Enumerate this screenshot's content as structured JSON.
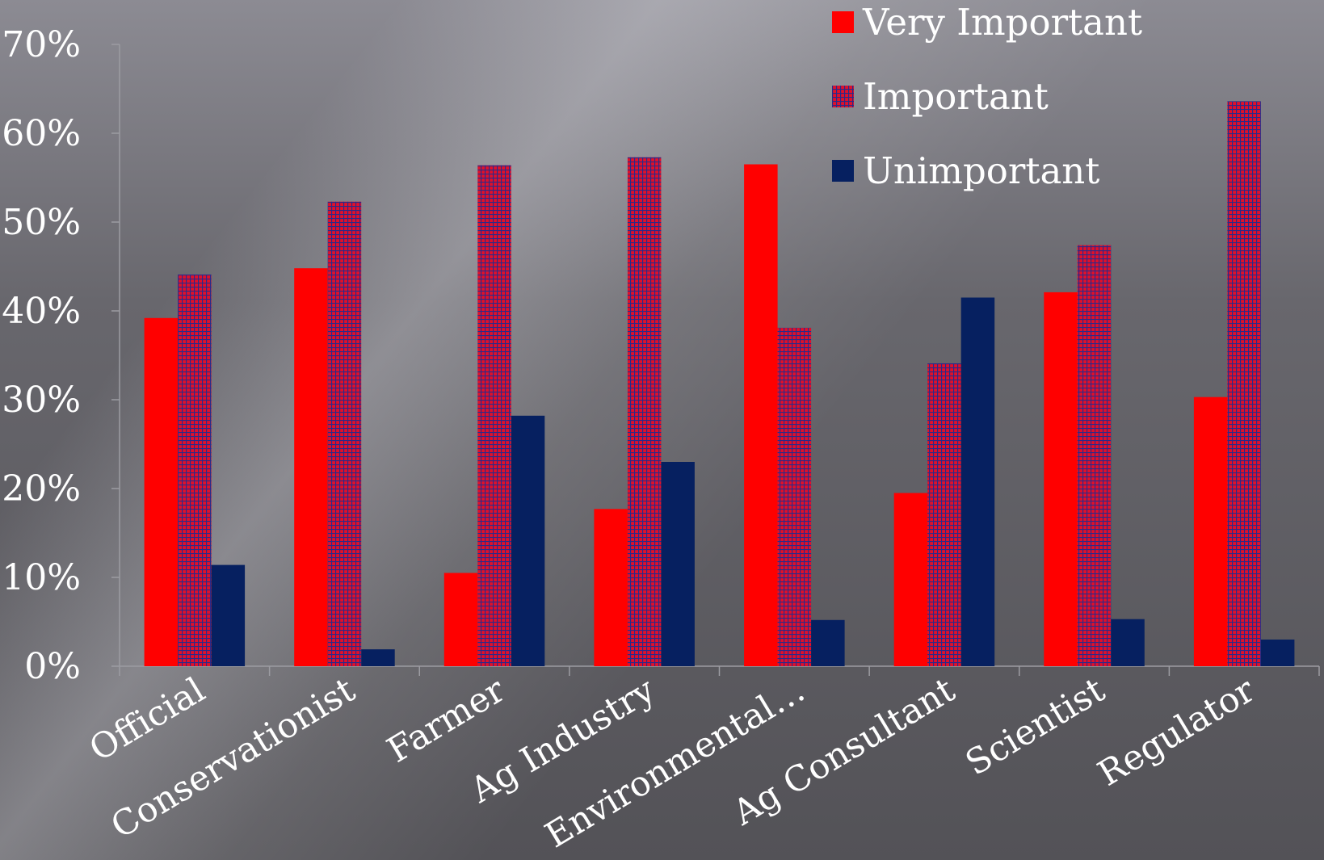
{
  "chart_data": {
    "type": "bar",
    "categories": [
      "Official",
      "Conservationist",
      "Farmer",
      "Ag Industry",
      "Environmental…",
      "Ag Consultant",
      "Scientist",
      "Regulator"
    ],
    "series": [
      {
        "name": "Very Important",
        "color": "#ff0000",
        "pattern": "solid",
        "values": [
          39.2,
          44.8,
          10.5,
          17.7,
          56.5,
          19.5,
          42.1,
          30.3
        ]
      },
      {
        "name": "Important",
        "color": "#d0102a",
        "pattern": "grid",
        "values": [
          44.1,
          52.3,
          56.4,
          57.3,
          38.1,
          34.1,
          47.4,
          63.6
        ]
      },
      {
        "name": "Unimportant",
        "color": "#062060",
        "pattern": "solid",
        "values": [
          11.4,
          1.9,
          28.2,
          23.0,
          5.2,
          41.5,
          5.3,
          3.0
        ]
      }
    ],
    "yticks": [
      "0%",
      "10%",
      "20%",
      "30%",
      "40%",
      "50%",
      "60%",
      "70%"
    ],
    "ylim": [
      0,
      70
    ],
    "y_unit": "%",
    "xlabel": "",
    "ylabel": "",
    "title": "",
    "grid": false,
    "legend_position": "top-right"
  }
}
